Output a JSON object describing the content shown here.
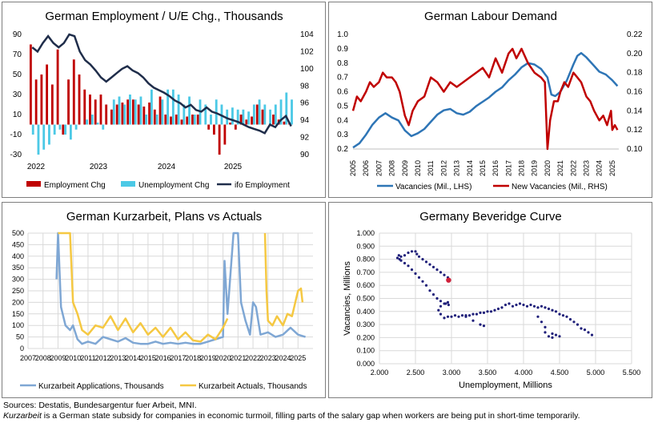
{
  "footer": {
    "sources": "Sources: Destatis, Bundesargentur fuer Arbeit, MNI.",
    "note_italic": "Kurzarbeit",
    "note_rest": " is a German state subsidy for companies in economic turmoil, filling parts of the salary gap when workers are being put in short-time temporarily."
  },
  "colors": {
    "red": "#c00000",
    "cyan": "#4cc9e6",
    "navy": "#1f2d4a",
    "blue": "#2e75b6",
    "darkred": "#c00000",
    "lightblue": "#7fa7d4",
    "gold": "#f5c842",
    "dots": "#1f1f7a",
    "lastdot": "#d0203a"
  },
  "chart_data": [
    {
      "type": "bar",
      "title": "German Employment / U/E Chg., Thousands",
      "x_tick_labels": [
        "2022",
        "2023",
        "2024",
        "2025"
      ],
      "y_left_ticks": [
        "90",
        "70",
        "50",
        "30",
        "10",
        "-10",
        "-30"
      ],
      "y_right_ticks": [
        "104",
        "102",
        "100",
        "98",
        "96",
        "94",
        "92",
        "90"
      ],
      "ylim_left": [
        -30,
        90
      ],
      "ylim_right": [
        90,
        104
      ],
      "legend": [
        "Employment Chg",
        "Unemployment Chg",
        "ifo Employment"
      ],
      "employment_chg": [
        80,
        45,
        50,
        60,
        40,
        75,
        -10,
        45,
        65,
        50,
        35,
        30,
        25,
        30,
        20,
        15,
        20,
        22,
        25,
        25,
        20,
        18,
        22,
        15,
        28,
        10,
        8,
        10,
        5,
        8,
        10,
        10,
        0,
        -5,
        -10,
        -30,
        -20,
        2,
        -5,
        10,
        5,
        8,
        20,
        15,
        0,
        10,
        5,
        3,
        2
      ],
      "unemployment_chg": [
        -10,
        -30,
        -25,
        -20,
        -10,
        -5,
        -10,
        -15,
        -5,
        0,
        5,
        10,
        2,
        -5,
        0,
        25,
        28,
        20,
        30,
        25,
        28,
        10,
        35,
        10,
        25,
        35,
        35,
        30,
        20,
        28,
        10,
        25,
        20,
        10,
        25,
        20,
        15,
        17,
        15,
        15,
        13,
        20,
        25,
        20,
        15,
        20,
        25,
        32,
        25
      ],
      "ifo_employment": [
        102.5,
        102,
        103,
        103.8,
        103,
        102.5,
        103,
        104,
        103.8,
        102,
        101,
        100.5,
        99.8,
        99,
        98.5,
        99,
        99.5,
        100,
        100.3,
        99.8,
        99.5,
        99,
        98.3,
        97.8,
        97.5,
        97.2,
        96.8,
        96.3,
        96,
        95.5,
        95.8,
        95.2,
        95,
        95.5,
        95,
        94.8,
        94.5,
        94.2,
        94,
        93.8,
        93.5,
        93.2,
        93,
        92.8,
        92.5,
        93.5,
        93.2,
        94,
        94.5,
        93.3
      ]
    },
    {
      "type": "line",
      "title": "German Labour Demand",
      "x_tick_labels": [
        "2005",
        "2006",
        "2007",
        "2008",
        "2009",
        "2010",
        "2011",
        "2012",
        "2013",
        "2014",
        "2015",
        "2016",
        "2017",
        "2018",
        "2019",
        "2020",
        "2021",
        "2022",
        "2023",
        "2024",
        "2025"
      ],
      "y_left_ticks": [
        "1.0",
        "0.9",
        "0.8",
        "0.7",
        "0.6",
        "0.5",
        "0.4",
        "0.3",
        "0.2"
      ],
      "y_right_ticks": [
        "0.22",
        "0.20",
        "0.18",
        "0.16",
        "0.14",
        "0.12",
        "0.10"
      ],
      "ylim_left": [
        0.2,
        1.0
      ],
      "ylim_right": [
        0.1,
        0.22
      ],
      "series": [
        {
          "name": "Vacancies (Mil., LHS)",
          "axis": "left",
          "x": [
            2005,
            2005.5,
            2006,
            2006.5,
            2007,
            2007.5,
            2008,
            2008.5,
            2009,
            2009.5,
            2010,
            2010.5,
            2011,
            2011.5,
            2012,
            2012.5,
            2013,
            2013.5,
            2014,
            2014.5,
            2015,
            2015.5,
            2016,
            2016.5,
            2017,
            2017.5,
            2018,
            2018.5,
            2019,
            2019.5,
            2020,
            2020.3,
            2020.6,
            2021,
            2021.5,
            2022,
            2022.3,
            2022.6,
            2023,
            2023.5,
            2024,
            2024.5,
            2025,
            2025.4
          ],
          "y": [
            0.21,
            0.24,
            0.3,
            0.37,
            0.42,
            0.45,
            0.42,
            0.4,
            0.33,
            0.29,
            0.31,
            0.34,
            0.39,
            0.44,
            0.47,
            0.48,
            0.45,
            0.44,
            0.46,
            0.5,
            0.53,
            0.56,
            0.6,
            0.63,
            0.68,
            0.72,
            0.77,
            0.8,
            0.79,
            0.76,
            0.7,
            0.58,
            0.57,
            0.6,
            0.68,
            0.79,
            0.85,
            0.87,
            0.84,
            0.79,
            0.74,
            0.72,
            0.68,
            0.64
          ]
        },
        {
          "name": "New Vacancies (Mil., RHS)",
          "axis": "right",
          "x": [
            2005,
            2005.3,
            2005.6,
            2006,
            2006.3,
            2006.6,
            2007,
            2007.3,
            2007.6,
            2008,
            2008.3,
            2008.6,
            2009,
            2009.3,
            2009.6,
            2010,
            2010.5,
            2011,
            2011.5,
            2012,
            2012.5,
            2013,
            2013.5,
            2014,
            2014.5,
            2015,
            2015.5,
            2016,
            2016.5,
            2017,
            2017.3,
            2017.6,
            2018,
            2018.5,
            2019,
            2019.5,
            2019.8,
            2020,
            2020.2,
            2020.5,
            2020.8,
            2021,
            2021.3,
            2021.6,
            2022,
            2022.3,
            2022.6,
            2023,
            2023.3,
            2023.6,
            2024,
            2024.3,
            2024.6,
            2024.9,
            2025,
            2025.2,
            2025.4
          ],
          "y": [
            0.14,
            0.155,
            0.15,
            0.16,
            0.17,
            0.165,
            0.17,
            0.18,
            0.175,
            0.175,
            0.17,
            0.16,
            0.135,
            0.125,
            0.14,
            0.15,
            0.155,
            0.175,
            0.17,
            0.16,
            0.17,
            0.165,
            0.17,
            0.175,
            0.18,
            0.185,
            0.175,
            0.195,
            0.18,
            0.2,
            0.205,
            0.195,
            0.205,
            0.19,
            0.18,
            0.175,
            0.17,
            0.1,
            0.13,
            0.15,
            0.15,
            0.16,
            0.17,
            0.165,
            0.18,
            0.175,
            0.17,
            0.155,
            0.15,
            0.14,
            0.13,
            0.135,
            0.125,
            0.14,
            0.12,
            0.125,
            0.12
          ]
        }
      ],
      "legend": [
        "Vacancies (Mil., LHS)",
        "New Vacancies (Mil., RHS)"
      ]
    },
    {
      "type": "line",
      "title": "German Kurzarbeit, Plans vs Actuals",
      "x_tick_labels": [
        "2007",
        "2008",
        "2009",
        "2010",
        "2011",
        "2012",
        "2013",
        "2014",
        "2015",
        "2016",
        "2017",
        "2018",
        "2019",
        "2020",
        "2021",
        "2022",
        "2023",
        "2024",
        "2025"
      ],
      "y_ticks": [
        "500",
        "450",
        "400",
        "350",
        "300",
        "250",
        "200",
        "150",
        "100",
        "50",
        "0"
      ],
      "ylim": [
        0,
        500
      ],
      "series": [
        {
          "name": "Kurzarbeit Applications, Thousands",
          "x": [
            2008.9,
            2009,
            2009.2,
            2009.5,
            2009.8,
            2010,
            2010.3,
            2010.6,
            2011,
            2011.5,
            2012,
            2012.5,
            2013,
            2013.5,
            2014,
            2014.5,
            2015,
            2015.5,
            2016,
            2016.5,
            2017,
            2017.5,
            2018,
            2018.5,
            2019,
            2019.5,
            2020,
            2020.1,
            2020.3,
            2020.7,
            2021,
            2021.2,
            2021.5,
            2021.8,
            2022,
            2022.2,
            2022.5,
            2023,
            2023.5,
            2024,
            2024.5,
            2025,
            2025.5
          ],
          "y": [
            300,
            500,
            180,
            100,
            80,
            100,
            40,
            20,
            30,
            20,
            50,
            40,
            30,
            45,
            25,
            20,
            20,
            30,
            20,
            25,
            20,
            25,
            20,
            20,
            30,
            40,
            50,
            380,
            150,
            500,
            500,
            200,
            120,
            60,
            200,
            180,
            60,
            70,
            50,
            60,
            90,
            60,
            50
          ]
        },
        {
          "name": "Kurzarbeit Actuals, Thousands",
          "x": [
            2009,
            2009.4,
            2009.8,
            2010,
            2010.3,
            2010.6,
            2011,
            2011.5,
            2012,
            2012.5,
            2013,
            2013.5,
            2014,
            2014.5,
            2015,
            2015.5,
            2016,
            2016.5,
            2017,
            2017.5,
            2018,
            2018.5,
            2019,
            2019.5,
            2020,
            2020.3,
            2022.8,
            2022.9,
            2023,
            2023.3,
            2023.6,
            2024,
            2024.3,
            2024.6,
            2025,
            2025.2,
            2025.3
          ],
          "y": [
            500,
            500,
            500,
            200,
            150,
            80,
            60,
            100,
            90,
            140,
            80,
            130,
            70,
            110,
            60,
            90,
            50,
            90,
            40,
            70,
            35,
            30,
            60,
            40,
            90,
            130,
            500,
            250,
            120,
            100,
            140,
            100,
            150,
            140,
            250,
            260,
            200
          ]
        }
      ],
      "legend": [
        "Kurzarbeit Applications, Thousands",
        "Kurzarbeit Actuals, Thousands"
      ]
    },
    {
      "type": "scatter",
      "title": "Germany Beveridge Curve",
      "xlabel": "Unemployment, Millions",
      "ylabel": "Vacancies, Millions",
      "x_ticks": [
        "2.000",
        "2.500",
        "3.000",
        "3.500",
        "4.000",
        "4.500",
        "5.000",
        "5.500"
      ],
      "y_ticks": [
        "1.000",
        "0.900",
        "0.800",
        "0.700",
        "0.600",
        "0.500",
        "0.400",
        "0.300",
        "0.200",
        "0.100",
        "0.000"
      ],
      "xlim": [
        2.0,
        5.5
      ],
      "ylim": [
        0.0,
        1.0
      ],
      "points": [
        [
          4.95,
          0.22
        ],
        [
          4.9,
          0.24
        ],
        [
          4.85,
          0.26
        ],
        [
          4.8,
          0.27
        ],
        [
          4.75,
          0.3
        ],
        [
          4.7,
          0.32
        ],
        [
          4.65,
          0.34
        ],
        [
          4.6,
          0.36
        ],
        [
          4.55,
          0.37
        ],
        [
          4.5,
          0.38
        ],
        [
          4.45,
          0.4
        ],
        [
          4.4,
          0.41
        ],
        [
          4.35,
          0.42
        ],
        [
          4.3,
          0.43
        ],
        [
          4.25,
          0.44
        ],
        [
          4.2,
          0.43
        ],
        [
          4.15,
          0.44
        ],
        [
          4.1,
          0.45
        ],
        [
          4.05,
          0.44
        ],
        [
          4.0,
          0.45
        ],
        [
          3.95,
          0.46
        ],
        [
          3.9,
          0.45
        ],
        [
          3.85,
          0.44
        ],
        [
          3.8,
          0.46
        ],
        [
          3.75,
          0.45
        ],
        [
          3.7,
          0.43
        ],
        [
          3.65,
          0.42
        ],
        [
          3.6,
          0.41
        ],
        [
          3.55,
          0.4
        ],
        [
          3.5,
          0.4
        ],
        [
          3.45,
          0.39
        ],
        [
          3.4,
          0.39
        ],
        [
          3.35,
          0.38
        ],
        [
          3.3,
          0.38
        ],
        [
          3.25,
          0.37
        ],
        [
          3.2,
          0.37
        ],
        [
          3.15,
          0.37
        ],
        [
          3.1,
          0.36
        ],
        [
          3.05,
          0.37
        ],
        [
          3.0,
          0.36
        ],
        [
          2.95,
          0.36
        ],
        [
          2.9,
          0.35
        ],
        [
          2.85,
          0.38
        ],
        [
          2.82,
          0.41
        ],
        [
          2.85,
          0.44
        ],
        [
          2.92,
          0.46
        ],
        [
          2.96,
          0.45
        ],
        [
          2.95,
          0.47
        ],
        [
          2.9,
          0.46
        ],
        [
          2.85,
          0.48
        ],
        [
          2.8,
          0.5
        ],
        [
          2.75,
          0.53
        ],
        [
          2.7,
          0.56
        ],
        [
          2.65,
          0.6
        ],
        [
          2.6,
          0.63
        ],
        [
          2.55,
          0.66
        ],
        [
          2.5,
          0.69
        ],
        [
          2.45,
          0.72
        ],
        [
          2.4,
          0.75
        ],
        [
          2.35,
          0.77
        ],
        [
          2.3,
          0.79
        ],
        [
          2.28,
          0.8
        ],
        [
          2.25,
          0.81
        ],
        [
          2.27,
          0.83
        ],
        [
          2.3,
          0.82
        ],
        [
          2.35,
          0.83
        ],
        [
          2.4,
          0.85
        ],
        [
          2.45,
          0.86
        ],
        [
          2.5,
          0.86
        ],
        [
          2.52,
          0.84
        ],
        [
          2.55,
          0.82
        ],
        [
          2.6,
          0.8
        ],
        [
          2.65,
          0.78
        ],
        [
          2.7,
          0.76
        ],
        [
          2.75,
          0.74
        ],
        [
          2.8,
          0.72
        ],
        [
          2.85,
          0.7
        ],
        [
          2.9,
          0.68
        ],
        [
          2.95,
          0.66
        ],
        [
          3.2,
          0.36
        ],
        [
          3.3,
          0.33
        ],
        [
          3.4,
          0.3
        ],
        [
          3.45,
          0.29
        ],
        [
          4.2,
          0.36
        ],
        [
          4.25,
          0.32
        ],
        [
          4.3,
          0.28
        ],
        [
          4.3,
          0.24
        ],
        [
          4.35,
          0.21
        ],
        [
          4.4,
          0.2
        ],
        [
          4.45,
          0.22
        ],
        [
          4.5,
          0.21
        ],
        [
          4.4,
          0.23
        ]
      ],
      "last_point": [
        2.96,
        0.64
      ]
    }
  ]
}
